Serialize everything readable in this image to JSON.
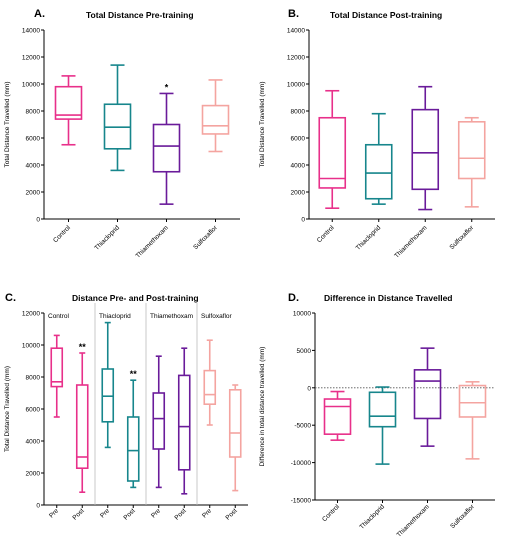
{
  "chart_data": [
    {
      "id": "A",
      "type": "boxplot",
      "letter": "A.",
      "title": "Total Distance Pre-training",
      "ylabel": "Total Distance Travelled (mm)",
      "ylim": [
        0,
        14000
      ],
      "yticks": [
        0,
        2000,
        4000,
        6000,
        8000,
        10000,
        12000,
        14000
      ],
      "categories": [
        "Control",
        "Thiacloprid",
        "Thiamethoxam",
        "Sulfoxaflor"
      ],
      "colors": [
        "#e8308a",
        "#17868c",
        "#6a1b9a",
        "#f4a4a0"
      ],
      "boxes": [
        {
          "min": 5500,
          "q1": 7400,
          "median": 7700,
          "q3": 9800,
          "max": 10600
        },
        {
          "min": 3600,
          "q1": 5200,
          "median": 6800,
          "q3": 8500,
          "max": 11400
        },
        {
          "min": 1100,
          "q1": 3500,
          "median": 5400,
          "q3": 7000,
          "max": 9300
        },
        {
          "min": 5000,
          "q1": 6300,
          "median": 6900,
          "q3": 8400,
          "max": 10300
        }
      ],
      "annotations": [
        {
          "category": "Thiamethoxam",
          "text": "*"
        }
      ]
    },
    {
      "id": "B",
      "type": "boxplot",
      "letter": "B.",
      "title": "Total Distance Post-training",
      "ylabel": "Total Distance Travelled (mm)",
      "ylim": [
        0,
        14000
      ],
      "yticks": [
        0,
        2000,
        4000,
        6000,
        8000,
        10000,
        12000,
        14000
      ],
      "categories": [
        "Control",
        "Thiacloprid",
        "Thiamethoxam",
        "Sulfoxaflor"
      ],
      "colors": [
        "#e8308a",
        "#17868c",
        "#6a1b9a",
        "#f4a4a0"
      ],
      "boxes": [
        {
          "min": 800,
          "q1": 2300,
          "median": 3000,
          "q3": 7500,
          "max": 9500
        },
        {
          "min": 1100,
          "q1": 1500,
          "median": 3400,
          "q3": 5500,
          "max": 7800
        },
        {
          "min": 700,
          "q1": 2200,
          "median": 4900,
          "q3": 8100,
          "max": 9800
        },
        {
          "min": 900,
          "q1": 3000,
          "median": 4500,
          "q3": 7200,
          "max": 7500
        }
      ],
      "annotations": []
    },
    {
      "id": "C",
      "type": "boxplot",
      "letter": "C.",
      "title": "Distance Pre- and Post-training",
      "ylabel": "Total Distance Travelled (mm)",
      "ylim": [
        0,
        12000
      ],
      "yticks": [
        0,
        2000,
        4000,
        6000,
        8000,
        10000,
        12000
      ],
      "groups": [
        "Control",
        "Thiacloprid",
        "Thiamethoxam",
        "Sulfoxaflor"
      ],
      "categories": [
        "Pre",
        "Post",
        "Pre",
        "Post",
        "Pre",
        "Post",
        "Pre",
        "Post"
      ],
      "colors": [
        "#e8308a",
        "#e8308a",
        "#17868c",
        "#17868c",
        "#6a1b9a",
        "#6a1b9a",
        "#f4a4a0",
        "#f4a4a0"
      ],
      "boxes": [
        {
          "min": 5500,
          "q1": 7400,
          "median": 7700,
          "q3": 9800,
          "max": 10600
        },
        {
          "min": 800,
          "q1": 2300,
          "median": 3000,
          "q3": 7500,
          "max": 9500
        },
        {
          "min": 3600,
          "q1": 5200,
          "median": 6800,
          "q3": 8500,
          "max": 11400
        },
        {
          "min": 1100,
          "q1": 1500,
          "median": 3400,
          "q3": 5500,
          "max": 7800
        },
        {
          "min": 1100,
          "q1": 3500,
          "median": 5400,
          "q3": 7000,
          "max": 9300
        },
        {
          "min": 700,
          "q1": 2200,
          "median": 4900,
          "q3": 8100,
          "max": 9800
        },
        {
          "min": 5000,
          "q1": 6300,
          "median": 6900,
          "q3": 8400,
          "max": 10300
        },
        {
          "min": 900,
          "q1": 3000,
          "median": 4500,
          "q3": 7200,
          "max": 7500
        }
      ],
      "annotations": [
        {
          "index": 1,
          "text": "**"
        },
        {
          "index": 3,
          "text": "**"
        }
      ]
    },
    {
      "id": "D",
      "type": "boxplot",
      "letter": "D.",
      "title": "Difference in Distance Travelled",
      "ylabel": "Difference in total distance travelled (mm)",
      "ylim": [
        -15000,
        10000
      ],
      "yticks": [
        -15000,
        -10000,
        -5000,
        0,
        5000,
        10000
      ],
      "reference_line": 0,
      "categories": [
        "Control",
        "Thiacloprid",
        "Thiamethoxam",
        "Sulfoxaflor"
      ],
      "colors": [
        "#e8308a",
        "#17868c",
        "#6a1b9a",
        "#f4a4a0"
      ],
      "boxes": [
        {
          "min": -7000,
          "q1": -6200,
          "median": -2500,
          "q3": -1500,
          "max": -500
        },
        {
          "min": -10200,
          "q1": -5200,
          "median": -3800,
          "q3": -600,
          "max": 100
        },
        {
          "min": -7800,
          "q1": -4100,
          "median": 900,
          "q3": 2400,
          "max": 5300
        },
        {
          "min": -9500,
          "q1": -3900,
          "median": -2000,
          "q3": 300,
          "max": 800
        }
      ],
      "annotations": []
    }
  ]
}
